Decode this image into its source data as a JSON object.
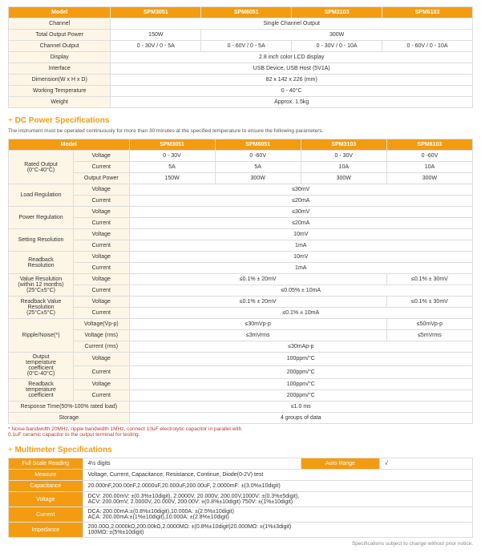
{
  "colors": {
    "accent": "#f39c12",
    "lbl_bg": "#fdf5e6",
    "border": "#ddd",
    "note": "#c0392b"
  },
  "top": {
    "headers": [
      "Model",
      "SPM3051",
      "SPM6051",
      "SPM3103",
      "SPM6103"
    ],
    "rows": [
      {
        "l": "Channel",
        "v": [
          "Single Channel Output"
        ],
        "span": 4
      },
      {
        "l": "Total Output Power",
        "v": [
          "150W",
          "300W"
        ],
        "spans": [
          1,
          3
        ]
      },
      {
        "l": "Channel Output",
        "v": [
          "0 - 30V / 0 - 5A",
          "0 - 60V / 0 - 5A",
          "0 - 30V / 0 - 10A",
          "0 - 60V / 0 - 10A"
        ]
      },
      {
        "l": "Display",
        "v": [
          "2.8 inch color LCD display"
        ],
        "span": 4
      },
      {
        "l": "Interface",
        "v": [
          "USB Device, USB Host (5V1A)"
        ],
        "span": 4
      },
      {
        "l": "Dimension(W x H x D)",
        "v": [
          "82 x 142 x 226 (mm)"
        ],
        "span": 4
      },
      {
        "l": "Working Temperature",
        "v": [
          "0 - 40°C"
        ],
        "span": 4
      },
      {
        "l": "Weight",
        "v": [
          "Approx. 1.5kg"
        ],
        "span": 4
      }
    ]
  },
  "dc": {
    "title": "DC Power Specifications",
    "sub": "The instrument must be operated continuously for more than 30 minutes at the specified temperature to ensure the following parameters.",
    "headers": [
      "Model",
      "",
      "SPM3051",
      "SPM6051",
      "SPM3103",
      "SPM6103"
    ],
    "rows": [
      {
        "g": "Rated Output\n(0°C-40°C)",
        "gr": 3,
        "l": "Voltage",
        "v": [
          "0 - 30V",
          "0 -60V",
          "0 - 30V",
          "0 -60V"
        ]
      },
      {
        "l": "Current",
        "v": [
          "5A",
          "5A",
          "10A",
          "10A"
        ]
      },
      {
        "l": "Output Power",
        "v": [
          "150W",
          "300W",
          "300W",
          "300W"
        ]
      },
      {
        "g": "Load Regulation",
        "gr": 2,
        "l": "Voltage",
        "v": [
          "≤30mV"
        ],
        "span": 4
      },
      {
        "l": "Current",
        "v": [
          "≤20mA"
        ],
        "span": 4
      },
      {
        "g": "Power Regulation",
        "gr": 2,
        "l": "Voltage",
        "v": [
          "≤30mV"
        ],
        "span": 4
      },
      {
        "l": "Current",
        "v": [
          "≤20mA"
        ],
        "span": 4
      },
      {
        "g": "Setting Resolution",
        "gr": 2,
        "l": "Voltage",
        "v": [
          "10mV"
        ],
        "span": 4
      },
      {
        "l": "Current",
        "v": [
          "1mA"
        ],
        "span": 4
      },
      {
        "g": "Readback\nResolution",
        "gr": 2,
        "l": "Voltage",
        "v": [
          "10mV"
        ],
        "span": 4
      },
      {
        "l": "Current",
        "v": [
          "1mA"
        ],
        "span": 4
      },
      {
        "g": "Value Resolution\n(within 12 months)\n(25°C±5°C)",
        "gr": 2,
        "l": "Voltage",
        "v": [
          "≤0.1% ± 20mV",
          "≤0.1% ± 30mV"
        ],
        "spans": [
          3,
          1
        ]
      },
      {
        "l": "Current",
        "v": [
          "≤0.05% ± 10mA"
        ],
        "span": 4
      },
      {
        "g": "Readback Value\nResolution\n(25°C±5°C)",
        "gr": 2,
        "l": "Voltage",
        "v": [
          "≤0.1% ± 20mV",
          "≤0.1% ± 30mV"
        ],
        "spans": [
          3,
          1
        ]
      },
      {
        "l": "Current",
        "v": [
          "≤0.1% ± 10mA"
        ],
        "span": 4
      },
      {
        "g": "Ripple/Noise(*)",
        "gr": 3,
        "l": "Voltage(Vp-p)",
        "v": [
          "≤30mVp-p",
          "≤50mVp-p"
        ],
        "spans": [
          3,
          1
        ]
      },
      {
        "l": "Voltage (rms)",
        "v": [
          "≤3mVrms",
          "≤5mVrms"
        ],
        "spans": [
          3,
          1
        ]
      },
      {
        "l": "Current (rms)",
        "v": [
          "≤30mAp-p"
        ],
        "span": 4
      },
      {
        "g": "Output\ntemperature\ncoefficient\n(0°C-40°C)",
        "gr": 2,
        "l": "Voltage",
        "v": [
          "100ppm/°C"
        ],
        "span": 4
      },
      {
        "l": "Current",
        "v": [
          "200ppm/°C"
        ],
        "span": 4
      },
      {
        "g": "Readback\ntemperature\ncoefficient",
        "gr": 2,
        "l": "Voltage",
        "v": [
          "100ppm/°C"
        ],
        "span": 4
      },
      {
        "l": "Current",
        "v": [
          "200ppm/°C"
        ],
        "span": 4
      },
      {
        "g": "Response Time(50%-100% rated load)",
        "gc": 2,
        "v": [
          "≤1.0 ms"
        ],
        "span": 4
      },
      {
        "g": "Storage",
        "gc": 2,
        "v": [
          "4 groups of data"
        ],
        "span": 4
      }
    ],
    "note": "* Noise bandwidth 20MHz, ripple bandwidth 1MHz, connect 10uF electrolytic capacitor in parallel with\n0.1uF ceramic capacitor to the output terminal for testing."
  },
  "mm": {
    "title": "Multimeter Specifications",
    "rows": [
      {
        "l": "Full Scale Reading",
        "v": "4½  digits",
        "auto": "Auto Range",
        "chk": "√"
      },
      {
        "l": "Measure",
        "v": "Voltage, Current, Capacitance, Resistance, Continue,  Diode(0-2V) test"
      },
      {
        "l": "Capacitance",
        "v": "20.000nF,200.00nF,2.0000uF,20.000uF,200.00uF, 2.0000mF: ±(3.0%±10digit)"
      },
      {
        "l": "Voltage",
        "v": "DCV: 200.00mV: ±(0.3%±10digit), 2.0000V, 20.000V, 200.00V,1000V: ±(0.3%±5digit),\nACV: 200.00mV, 2.0000V, 20.000V, 200.00V: ±(0.8%±10digit)   750V: ±(1%±10digit)"
      },
      {
        "l": "Current",
        "v": "DCA: 200.00mA:±(0.8%±10digit),10.000A: ±(2.5%±10digit)\nACA: 200.00mA:±(1%±10digit),10.000A: ±(2.8%±10digit)"
      },
      {
        "l": "Impedance",
        "v": "200.00Ω,2.0000kΩ,200.00kΩ,2.0000MΩ: ±(0.8%±10digit)20.000MΩ: ±(1%±3digit)\n100MΩ: ±(5%±10digit)"
      }
    ],
    "footer": "Specifications subject to change without prior notice."
  }
}
